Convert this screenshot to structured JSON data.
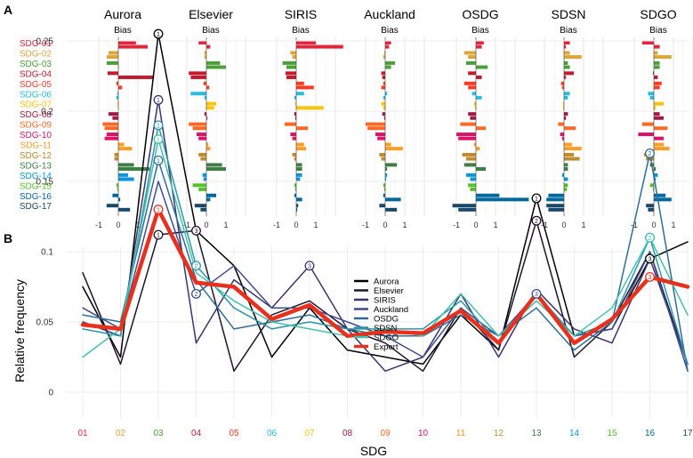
{
  "panel_a_label": "A",
  "panel_b_label": "B",
  "chart_data": [
    {
      "type": "bar",
      "panel": "A",
      "subtitle": "Bias",
      "xlim": [
        -1.3,
        1.8
      ],
      "xticks": [
        "-1",
        "0",
        "1"
      ],
      "categories": [
        "SDG-01",
        "SDG-02",
        "SDG-03",
        "SDG-04",
        "SDG-05",
        "SDG-06",
        "SDG-07",
        "SDG-08",
        "SDG-09",
        "SDG-10",
        "SDG-11",
        "SDG-12",
        "SDG-13",
        "SDG-14",
        "SDG-15",
        "SDG-16",
        "SDG-17"
      ],
      "category_colors": [
        "#e5243b",
        "#dda63a",
        "#4c9f38",
        "#c5192d",
        "#ff3a21",
        "#26bde2",
        "#fcc30b",
        "#a21942",
        "#fd6925",
        "#dd1367",
        "#fd9d24",
        "#bf8b2e",
        "#3f7e44",
        "#0a97d9",
        "#56c02b",
        "#00689d",
        "#19486a"
      ],
      "series": [
        {
          "name": "Aurora",
          "values": [
            [
              0.9,
              1.5
            ],
            [
              -0.5,
              -0.6
            ],
            [
              -0.6,
              0.0
            ],
            [
              -0.55,
              1.8
            ],
            [
              -0.1,
              0.2
            ],
            [
              -0.05,
              -0.1
            ],
            [
              -0.05,
              0.0
            ],
            [
              -0.5,
              -0.3
            ],
            [
              -0.8,
              -0.7
            ],
            [
              -0.6,
              -0.7
            ],
            [
              0.3,
              0.7
            ],
            [
              -0.2,
              -0.2
            ],
            [
              0.8,
              1.6
            ],
            [
              0.5,
              0.8
            ],
            [
              -0.1,
              -0.05
            ],
            [
              -0.3,
              0.1
            ],
            [
              -0.6,
              0.6
            ]
          ]
        },
        {
          "name": "Elsevier",
          "values": [
            [
              -0.4,
              0.2
            ],
            [
              -0.1,
              -0.1
            ],
            [
              0.7,
              1.0
            ],
            [
              -0.9,
              -0.8
            ],
            [
              -0.15,
              0.15
            ],
            [
              -0.8,
              -0.1
            ],
            [
              0.5,
              0.4
            ],
            [
              -0.1,
              0.05
            ],
            [
              -0.9,
              -0.7
            ],
            [
              -0.5,
              -0.4
            ],
            [
              0.1,
              0.2
            ],
            [
              -0.4,
              -0.3
            ],
            [
              0.8,
              1.0
            ],
            [
              -0.2,
              -0.15
            ],
            [
              -0.7,
              -0.4
            ],
            [
              0.5,
              0.2
            ],
            [
              -0.6,
              -0.3
            ]
          ]
        },
        {
          "name": "SIRIS",
          "values": [
            [
              1.0,
              2.4
            ],
            [
              -0.3,
              -0.2
            ],
            [
              -0.7,
              -0.5
            ],
            [
              -0.55,
              -0.5
            ],
            [
              0.4,
              0.9
            ],
            [
              0.4,
              -0.1
            ],
            [
              -0.05,
              1.4
            ],
            [
              -0.1,
              -0.05
            ],
            [
              -0.6,
              0.6
            ],
            [
              -0.3,
              -0.2
            ],
            [
              0.4,
              0.5
            ],
            [
              -0.2,
              -0.1
            ],
            [
              0.3,
              0.3
            ],
            [
              0.3,
              0.2
            ],
            [
              -0.1,
              -0.05
            ],
            [
              -0.1,
              0.3
            ],
            [
              0.1,
              0.05
            ]
          ]
        },
        {
          "name": "Auckland",
          "values": [
            [
              0.3,
              0.2
            ],
            [
              -0.05,
              -0.1
            ],
            [
              0.5,
              0.3
            ],
            [
              -0.2,
              -0.15
            ],
            [
              -0.1,
              -0.2
            ],
            [
              0.1,
              -0.1
            ],
            [
              -0.2,
              -0.1
            ],
            [
              -0.15,
              -0.05
            ],
            [
              -1.0,
              -0.9
            ],
            [
              -0.5,
              -0.4
            ],
            [
              0.3,
              0.9
            ],
            [
              -0.3,
              -0.2
            ],
            [
              0.6,
              0.1
            ],
            [
              0.1,
              0.05
            ],
            [
              -0.1,
              -0.05
            ],
            [
              -0.1,
              0.8
            ],
            [
              -0.3,
              0.6
            ]
          ]
        },
        {
          "name": "OSDG",
          "values": [
            [
              0.4,
              0.3
            ],
            [
              -0.6,
              -0.4
            ],
            [
              -0.5,
              0.6
            ],
            [
              -0.4,
              0.3
            ],
            [
              -0.6,
              -0.4
            ],
            [
              -0.2,
              0.3
            ],
            [
              -0.1,
              -0.05
            ],
            [
              -0.4,
              -0.3
            ],
            [
              -0.8,
              0.5
            ],
            [
              -1.0,
              -0.9
            ],
            [
              -0.1,
              0.2
            ],
            [
              -0.7,
              -0.5
            ],
            [
              -0.6,
              0.5
            ],
            [
              -0.5,
              -0.3
            ],
            [
              -0.4,
              -0.3
            ],
            [
              1.2,
              2.7
            ],
            [
              -1.2,
              -0.9
            ]
          ]
        },
        {
          "name": "SDSN",
          "values": [
            [
              0.3,
              0.1
            ],
            [
              0.3,
              0.9
            ],
            [
              0.2,
              0.3
            ],
            [
              0.5,
              0.1
            ],
            [
              -0.15,
              -0.1
            ],
            [
              0.3,
              0.2
            ],
            [
              -0.05,
              -0.05
            ],
            [
              0.2,
              0.1
            ],
            [
              -0.3,
              0.6
            ],
            [
              -0.2,
              -0.1
            ],
            [
              0.4,
              0.9
            ],
            [
              0.5,
              0.8
            ],
            [
              0.2,
              0.2
            ],
            [
              -0.1,
              0.2
            ],
            [
              0.2,
              0.15
            ],
            [
              -0.8,
              -0.9
            ],
            [
              -0.9,
              -0.8
            ]
          ]
        },
        {
          "name": "SDGO",
          "values": [
            [
              -0.6,
              0.3
            ],
            [
              0.2,
              0.9
            ],
            [
              0.3,
              0.3
            ],
            [
              -0.05,
              0.2
            ],
            [
              0.4,
              0.3
            ],
            [
              -0.3,
              -0.2
            ],
            [
              0.5,
              0.1
            ],
            [
              0.3,
              0.5
            ],
            [
              -0.6,
              0.7
            ],
            [
              -0.8,
              0.5
            ],
            [
              0.5,
              0.8
            ],
            [
              -0.5,
              -0.4
            ],
            [
              -0.2,
              0.1
            ],
            [
              0.2,
              0.1
            ],
            [
              -0.2,
              -0.05
            ],
            [
              0.6,
              0.9
            ],
            [
              -0.4,
              -0.3
            ]
          ]
        }
      ]
    },
    {
      "type": "line",
      "panel": "B",
      "ylabel": "Relative frequency",
      "xlabel": "SDG",
      "ylim": [
        0,
        0.27
      ],
      "yticks": [
        "0",
        "0.05",
        "0.1",
        "0.15",
        "0.2",
        "0.25"
      ],
      "categories": [
        "01",
        "02",
        "03",
        "04",
        "05",
        "06",
        "07",
        "08",
        "09",
        "10",
        "11",
        "12",
        "13",
        "14",
        "15",
        "16",
        "17"
      ],
      "category_colors": [
        "#e5243b",
        "#dda63a",
        "#4c9f38",
        "#c5192d",
        "#ff3a21",
        "#26bde2",
        "#fcc30b",
        "#a21942",
        "#fd6925",
        "#dd1367",
        "#fd9d24",
        "#bf8b2e",
        "#3f7e44",
        "#0a97d9",
        "#56c02b",
        "#00689d",
        "#19486a"
      ],
      "series": [
        {
          "name": "Aurora",
          "color": "#000000",
          "values": [
            0.075,
            0.025,
            0.255,
            0.115,
            0.09,
            0.025,
            0.06,
            0.03,
            0.025,
            0.02,
            0.055,
            0.03,
            0.138,
            0.04,
            0.045,
            0.095,
            0.107
          ]
        },
        {
          "name": "Elsevier",
          "color": "#1f1430",
          "values": [
            0.085,
            0.02,
            0.112,
            0.115,
            0.015,
            0.055,
            0.065,
            0.045,
            0.035,
            0.015,
            0.06,
            0.03,
            0.122,
            0.025,
            0.05,
            0.1,
            0.02
          ]
        },
        {
          "name": "SIRIS",
          "color": "#3b3470",
          "values": [
            0.05,
            0.04,
            0.208,
            0.035,
            0.08,
            0.06,
            0.09,
            0.045,
            0.015,
            0.025,
            0.07,
            0.025,
            0.073,
            0.045,
            0.035,
            0.095,
            0.02
          ]
        },
        {
          "name": "Auckland",
          "color": "#3f4d8c",
          "values": [
            0.06,
            0.045,
            0.15,
            0.07,
            0.09,
            0.06,
            0.06,
            0.05,
            0.04,
            0.025,
            0.06,
            0.04,
            0.07,
            0.04,
            0.045,
            0.1,
            0.015
          ]
        },
        {
          "name": "OSDG",
          "color": "#2f6d98",
          "values": [
            0.055,
            0.05,
            0.165,
            0.08,
            0.045,
            0.05,
            0.055,
            0.045,
            0.04,
            0.04,
            0.055,
            0.04,
            0.06,
            0.03,
            0.05,
            0.17,
            0.015
          ]
        },
        {
          "name": "SDSN",
          "color": "#2a97a8",
          "values": [
            0.045,
            0.04,
            0.19,
            0.09,
            0.06,
            0.045,
            0.05,
            0.045,
            0.045,
            0.045,
            0.065,
            0.035,
            0.07,
            0.04,
            0.05,
            0.11,
            0.02
          ]
        },
        {
          "name": "SDGO",
          "color": "#40c2ae",
          "values": [
            0.025,
            0.045,
            0.18,
            0.085,
            0.065,
            0.05,
            0.045,
            0.04,
            0.045,
            0.04,
            0.07,
            0.04,
            0.065,
            0.04,
            0.06,
            0.11,
            0.055
          ]
        },
        {
          "name": "Expert",
          "color": "#e8301c",
          "values": [
            0.048,
            0.045,
            0.13,
            0.078,
            0.075,
            0.052,
            0.062,
            0.04,
            0.043,
            0.042,
            0.058,
            0.035,
            0.07,
            0.035,
            0.052,
            0.082,
            0.075
          ]
        }
      ],
      "point_labels": [
        {
          "series": "Aurora",
          "index": 2,
          "label": "1"
        },
        {
          "series": "SIRIS",
          "index": 2,
          "label": "1"
        },
        {
          "series": "OSDG",
          "index": 2,
          "label": "1"
        },
        {
          "series": "SDSN",
          "index": 2,
          "label": "1"
        },
        {
          "series": "SDGO",
          "index": 2,
          "label": "1"
        },
        {
          "series": "Expert",
          "index": 2,
          "label": "1"
        },
        {
          "series": "Elsevier",
          "index": 2,
          "label": "1"
        },
        {
          "series": "Elsevier",
          "index": 3,
          "label": "3"
        },
        {
          "series": "Auckland",
          "index": 3,
          "label": "2"
        },
        {
          "series": "SDSN",
          "index": 3,
          "label": "2"
        },
        {
          "series": "SIRIS",
          "index": 6,
          "label": "3"
        },
        {
          "series": "Aurora",
          "index": 12,
          "label": "1"
        },
        {
          "series": "Elsevier",
          "index": 12,
          "label": "2"
        },
        {
          "series": "Auckland",
          "index": 12,
          "label": "3"
        },
        {
          "series": "OSDG",
          "index": 15,
          "label": "2"
        },
        {
          "series": "SDSN",
          "index": 15,
          "label": "3"
        },
        {
          "series": "SDGO",
          "index": 15,
          "label": "2"
        },
        {
          "series": "Aurora",
          "index": 15,
          "label": "3"
        },
        {
          "series": "Expert",
          "index": 15,
          "label": "3"
        }
      ]
    }
  ]
}
